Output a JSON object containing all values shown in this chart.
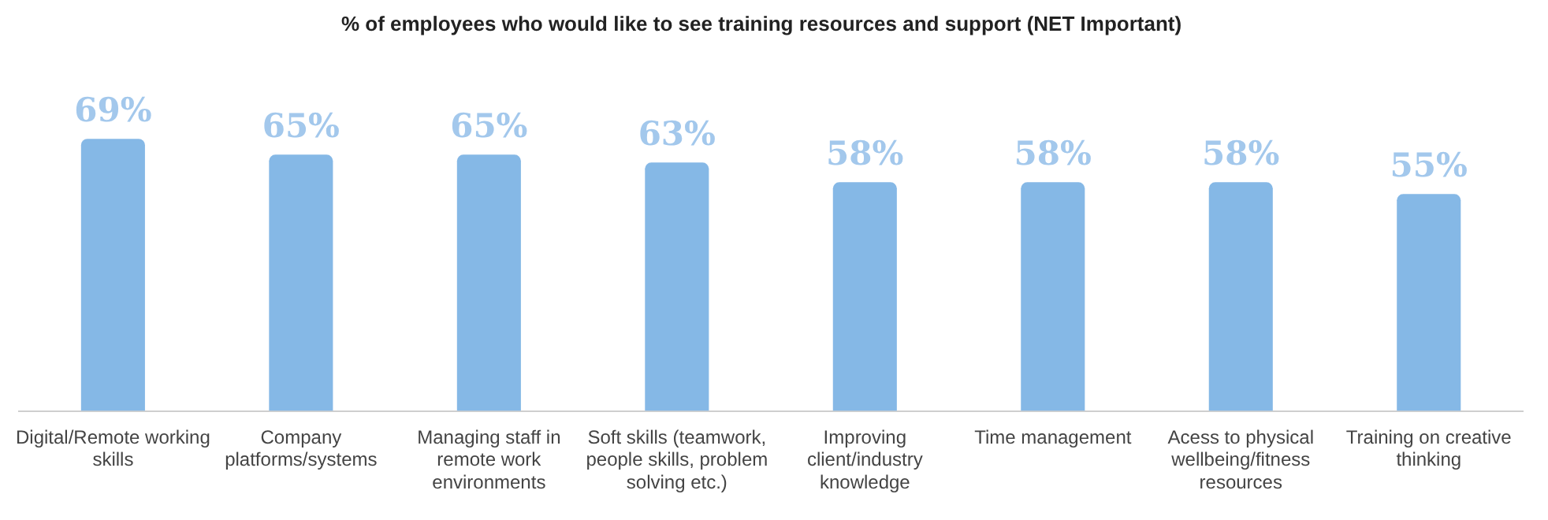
{
  "chart_data": {
    "type": "bar",
    "title": "% of employees who would like to see training resources and support (NET Important)",
    "categories": [
      "Digital/Remote working skills",
      "Company platforms/systems",
      "Managing staff in remote work environments",
      "Soft skills (teamwork, people skills, problem solving etc.)",
      "Improving client/industry knowledge",
      "Time management",
      "Acess to physical wellbeing/fitness resources",
      "Training on creative thinking"
    ],
    "values": [
      69,
      65,
      65,
      63,
      58,
      58,
      58,
      55
    ],
    "value_labels": [
      "69%",
      "65%",
      "65%",
      "63%",
      "58%",
      "58%",
      "58%",
      "55%"
    ],
    "color": "#85b8e6",
    "grid": false,
    "legend": false
  }
}
